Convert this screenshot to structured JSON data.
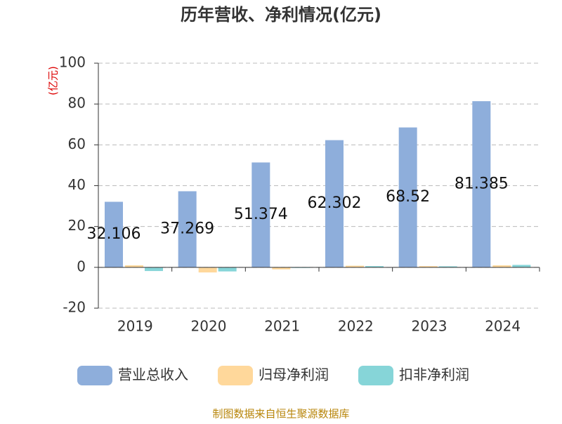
{
  "chart_data": {
    "type": "bar",
    "title": "历年营收、净利情况(亿元)",
    "y_label": "(亿元)",
    "categories": [
      "2019",
      "2020",
      "2021",
      "2022",
      "2023",
      "2024"
    ],
    "series": [
      {
        "name": "营业总收入",
        "color": "#8eaedb",
        "values": [
          32.106,
          37.269,
          51.374,
          62.302,
          68.52,
          81.385
        ],
        "show_labels": true
      },
      {
        "name": "归母净利润",
        "color": "#ffd89b",
        "values": [
          1.0,
          -2.5,
          -1.0,
          0.8,
          0.6,
          1.0
        ]
      },
      {
        "name": "扣非净利润",
        "color": "#86d5d8",
        "values": [
          -1.8,
          -2.0,
          -0.3,
          0.6,
          0.5,
          1.2
        ]
      }
    ],
    "ylim": [
      -20,
      100
    ],
    "yticks": [
      -20,
      0,
      20,
      40,
      60,
      80,
      100
    ],
    "grid": true,
    "source": "制图数据来自恒生聚源数据库"
  }
}
